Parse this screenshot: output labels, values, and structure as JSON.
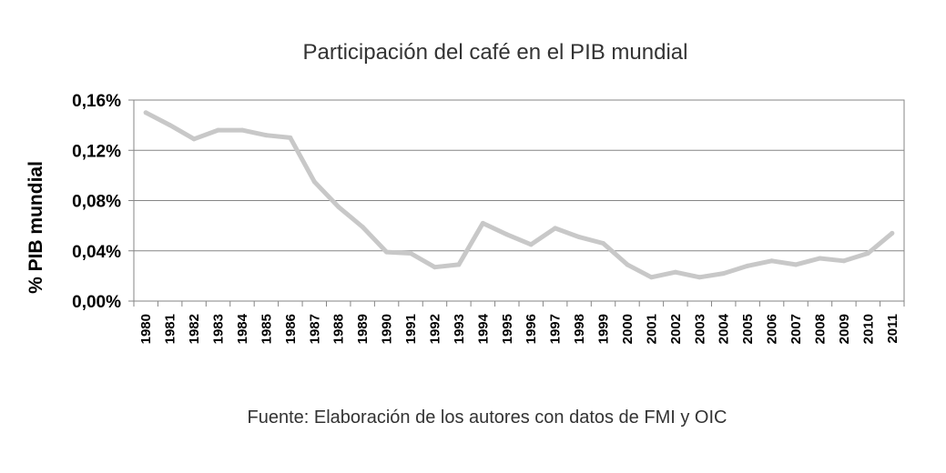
{
  "chart_data": {
    "type": "line",
    "title": "Participación del café en el PIB mundial",
    "ylabel": "% PIB mundial",
    "xlabel": "",
    "source_note": "Fuente: Elaboración de los autores con datos de FMI y OIC",
    "categories": [
      "1980",
      "1981",
      "1982",
      "1983",
      "1984",
      "1985",
      "1986",
      "1987",
      "1988",
      "1989",
      "1990",
      "1991",
      "1992",
      "1993",
      "1994",
      "1995",
      "1996",
      "1997",
      "1998",
      "1999",
      "2000",
      "2001",
      "2002",
      "2003",
      "2004",
      "2005",
      "2006",
      "2007",
      "2008",
      "2009",
      "2010",
      "2011"
    ],
    "series": [
      {
        "color": "#c8c8c8",
        "values": [
          0.15,
          0.14,
          0.129,
          0.136,
          0.136,
          0.132,
          0.13,
          0.095,
          0.075,
          0.059,
          0.039,
          0.038,
          0.027,
          0.029,
          0.062,
          0.053,
          0.045,
          0.058,
          0.051,
          0.046,
          0.029,
          0.019,
          0.023,
          0.019,
          0.022,
          0.028,
          0.032,
          0.029,
          0.034,
          0.032,
          0.038,
          0.054
        ]
      }
    ],
    "ylim": [
      0,
      0.16
    ],
    "y_ticks": [
      {
        "value": 0.0,
        "label": "0,00%"
      },
      {
        "value": 0.04,
        "label": "0,04%"
      },
      {
        "value": 0.08,
        "label": "0,08%"
      },
      {
        "value": 0.12,
        "label": "0,12%"
      },
      {
        "value": 0.16,
        "label": "0,16%"
      }
    ],
    "grid": true,
    "legend": "none"
  }
}
